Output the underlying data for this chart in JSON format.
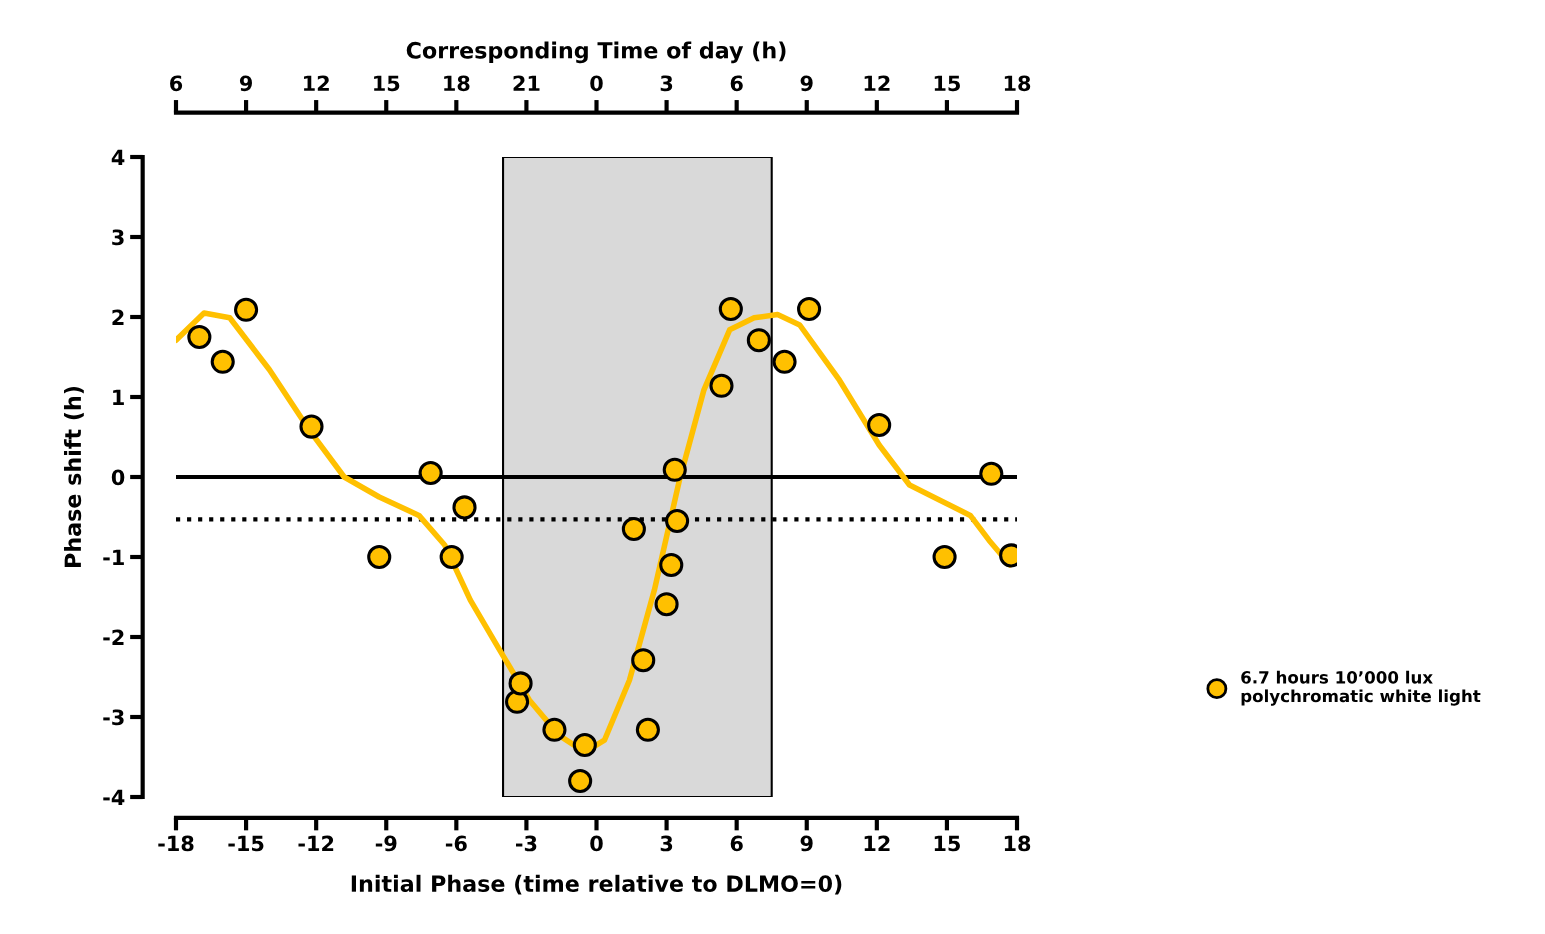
{
  "chart_data": {
    "type": "scatter",
    "xlabel": "Initial Phase (time relative to DLMO=0)",
    "ylabel": "Phase shift (h)",
    "x2label": "Corresponding Time of day (h)",
    "xlim": [
      -18,
      18
    ],
    "xticks": [
      -18,
      -15,
      -12,
      -9,
      -6,
      -3,
      0,
      3,
      6,
      9,
      12,
      15,
      18
    ],
    "ylim": [
      -4,
      4
    ],
    "yticks": [
      -4,
      -3,
      -2,
      -1,
      0,
      1,
      2,
      3,
      4
    ],
    "x2lim": [
      "2000-01-01T06:00",
      "2000-01-02T18:00"
    ],
    "x2ticks": [
      {
        "value": "2000-01-01T06:00",
        "label": "6"
      },
      {
        "value": "2000-01-01T09:00",
        "label": "9"
      },
      {
        "value": "2000-01-01T12:00",
        "label": "12"
      },
      {
        "value": "2000-01-01T15:00",
        "label": "15"
      },
      {
        "value": "2000-01-01T18:00",
        "label": "18"
      },
      {
        "value": "2000-01-01T21:00",
        "label": "21"
      },
      {
        "value": "2000-01-02T00:00",
        "label": "0"
      },
      {
        "value": "2000-01-02T03:00",
        "label": "3"
      },
      {
        "value": "2000-01-02T06:00",
        "label": "6"
      },
      {
        "value": "2000-01-02T09:00",
        "label": "9"
      },
      {
        "value": "2000-01-02T12:00",
        "label": "12"
      },
      {
        "value": "2000-01-02T15:00",
        "label": "15"
      },
      {
        "value": "2000-01-02T18:00",
        "label": "18"
      }
    ],
    "grid": false,
    "legend": "right",
    "marker": "circle",
    "series": [
      {
        "name": "6.7 hours 10’000 lux\npolychromatic white light",
        "color": "#ffc000",
        "x": [
          -17.0,
          -16.0,
          -15.0,
          -12.2,
          -9.3,
          -7.1,
          -5.65,
          -6.2,
          -3.4,
          -3.25,
          -1.8,
          -0.5,
          -0.7,
          1.6,
          2.0,
          2.2,
          3.0,
          3.2,
          3.35,
          3.45,
          5.35,
          5.75,
          6.95,
          8.05,
          9.1,
          12.1,
          14.9,
          16.9,
          17.75
        ],
        "values": [
          1.75,
          1.44,
          2.09,
          0.63,
          -1.0,
          0.05,
          -0.38,
          -1.0,
          -2.81,
          -2.58,
          -3.16,
          -3.35,
          -3.8,
          -0.65,
          -2.29,
          -3.16,
          -1.59,
          -1.1,
          0.09,
          -0.55,
          1.14,
          2.1,
          1.71,
          1.44,
          2.1,
          0.65,
          -1.0,
          0.04,
          -0.98
        ]
      },
      {
        "type": "line",
        "color": "#ffc000",
        "marker": "none",
        "x": [
          -18,
          -16.8,
          -15.7,
          -14,
          -12.3,
          -10.8,
          -9.3,
          -7.6,
          -6.5,
          -5.4,
          -4.15,
          -2.87,
          -1.6,
          -0.5,
          0.34,
          1.41,
          2.48,
          3.55,
          4.6,
          5.7,
          6.75,
          7.75,
          8.7,
          10.4,
          12.1,
          13.4,
          14.7,
          16,
          16.8,
          17.7
        ],
        "values": [
          1.71,
          2.05,
          1.99,
          1.34,
          0.59,
          0,
          -0.25,
          -0.48,
          -0.85,
          -1.54,
          -2.16,
          -2.79,
          -3.23,
          -3.44,
          -3.29,
          -2.54,
          -1.41,
          -0.04,
          1.09,
          1.84,
          1.99,
          2.03,
          1.9,
          1.21,
          0.4,
          -0.1,
          -0.29,
          -0.48,
          -0.79,
          -1.1
        ]
      }
    ],
    "ref_lines": [
      {
        "axis": "y",
        "value": 0,
        "color": "#000000",
        "line_style": "solid"
      },
      {
        "axis": "y",
        "value": -0.53,
        "color": "#000000",
        "line_style": "dotted"
      }
    ],
    "bands": [
      {
        "axis": "x",
        "from": -4.0,
        "to": 7.5,
        "color": "#d9d9d9"
      }
    ]
  }
}
